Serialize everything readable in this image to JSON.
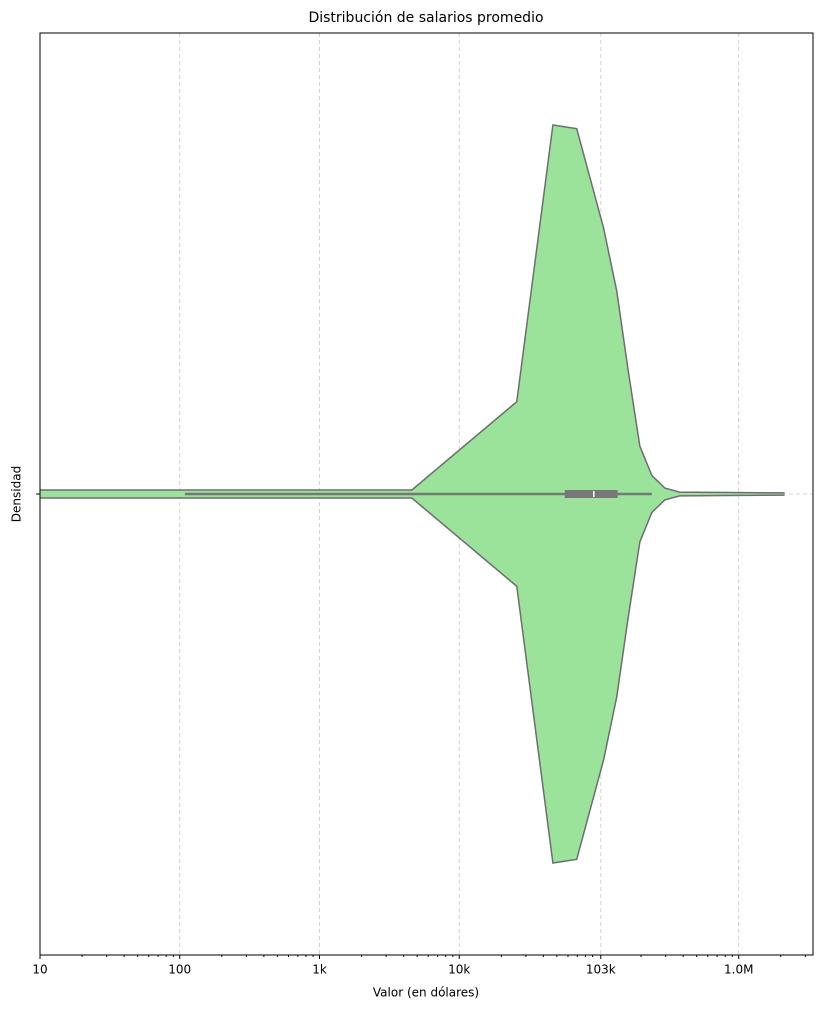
{
  "chart_data": {
    "type": "violin",
    "title": "Distribución de salarios promedio",
    "xlabel": "Valor (en dólares)",
    "ylabel": "Densidad",
    "xscale": "log",
    "xlim": [
      10,
      3400000
    ],
    "xticks": [
      10,
      100,
      {
        "value": 1000,
        "label": "1k"
      },
      {
        "value": 10000,
        "label": "10k"
      },
      {
        "value": 103000,
        "label": "103k"
      },
      {
        "value": 1000000,
        "label": "1.0M"
      }
    ],
    "grid": true,
    "color": "#9be39b",
    "edge_color": "#6e6e6e",
    "violin": {
      "x": [
        10,
        4580,
        25800,
        46800,
        69300,
        108000,
        134000,
        161000,
        196000,
        239000,
        296000,
        378000,
        2130000
      ],
      "density": [
        0.011,
        0.011,
        0.25,
        1.0,
        0.99,
        0.72,
        0.55,
        0.34,
        0.13,
        0.05,
        0.016,
        0.005,
        0.003
      ]
    },
    "box": {
      "whisker_low": 109,
      "q1": 56900,
      "median": 91800,
      "q3": 136000,
      "whisker_high": 239000
    }
  }
}
